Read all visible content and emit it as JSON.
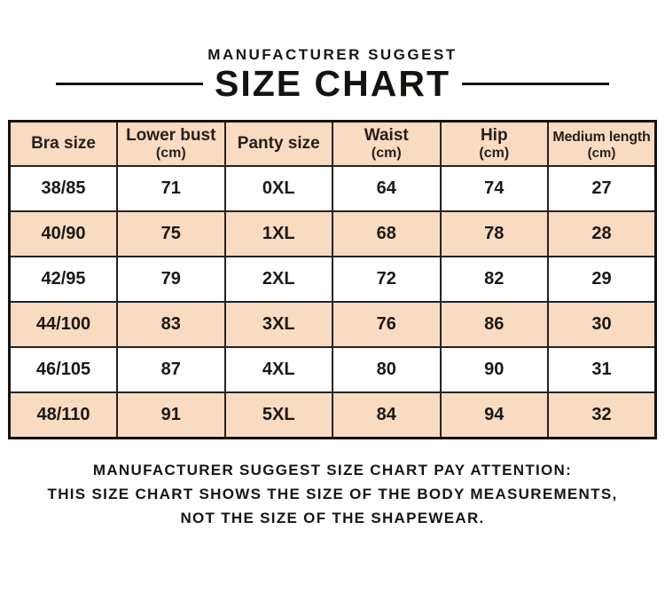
{
  "title": {
    "kicker": "MANUFACTURER SUGGEST",
    "main": "SIZE CHART"
  },
  "chart_data": {
    "type": "table",
    "title": "SIZE CHART",
    "subtitle": "MANUFACTURER SUGGEST",
    "columns": [
      {
        "label": "Bra size",
        "unit": ""
      },
      {
        "label": "Lower bust",
        "unit": "(cm)"
      },
      {
        "label": "Panty size",
        "unit": ""
      },
      {
        "label": "Waist",
        "unit": "(cm)"
      },
      {
        "label": "Hip",
        "unit": "(cm)"
      },
      {
        "label": "Medium length",
        "unit": "(cm)"
      }
    ],
    "rows": [
      [
        "38/85",
        "71",
        "0XL",
        "64",
        "74",
        "27"
      ],
      [
        "40/90",
        "75",
        "1XL",
        "68",
        "78",
        "28"
      ],
      [
        "42/95",
        "79",
        "2XL",
        "72",
        "82",
        "29"
      ],
      [
        "44/100",
        "83",
        "3XL",
        "76",
        "86",
        "30"
      ],
      [
        "46/105",
        "87",
        "4XL",
        "80",
        "90",
        "31"
      ],
      [
        "48/110",
        "91",
        "5XL",
        "84",
        "94",
        "32"
      ]
    ],
    "layout": {
      "header_background": "#f9dbc1",
      "row_striping": "white / peach alternating, first data row white",
      "grid": true
    }
  },
  "footer": {
    "line1": "MANUFACTURER SUGGEST SIZE CHART PAY ATTENTION:",
    "line2": "THIS SIZE CHART SHOWS THE SIZE OF THE BODY MEASUREMENTS,",
    "line3": "NOT THE SIZE OF THE SHAPEWEAR."
  },
  "colors": {
    "peach": "#f9dbc1",
    "outer_border": "#141210",
    "inner_border": "#26221f",
    "text": "#1b1815",
    "background": "#ffffff"
  }
}
